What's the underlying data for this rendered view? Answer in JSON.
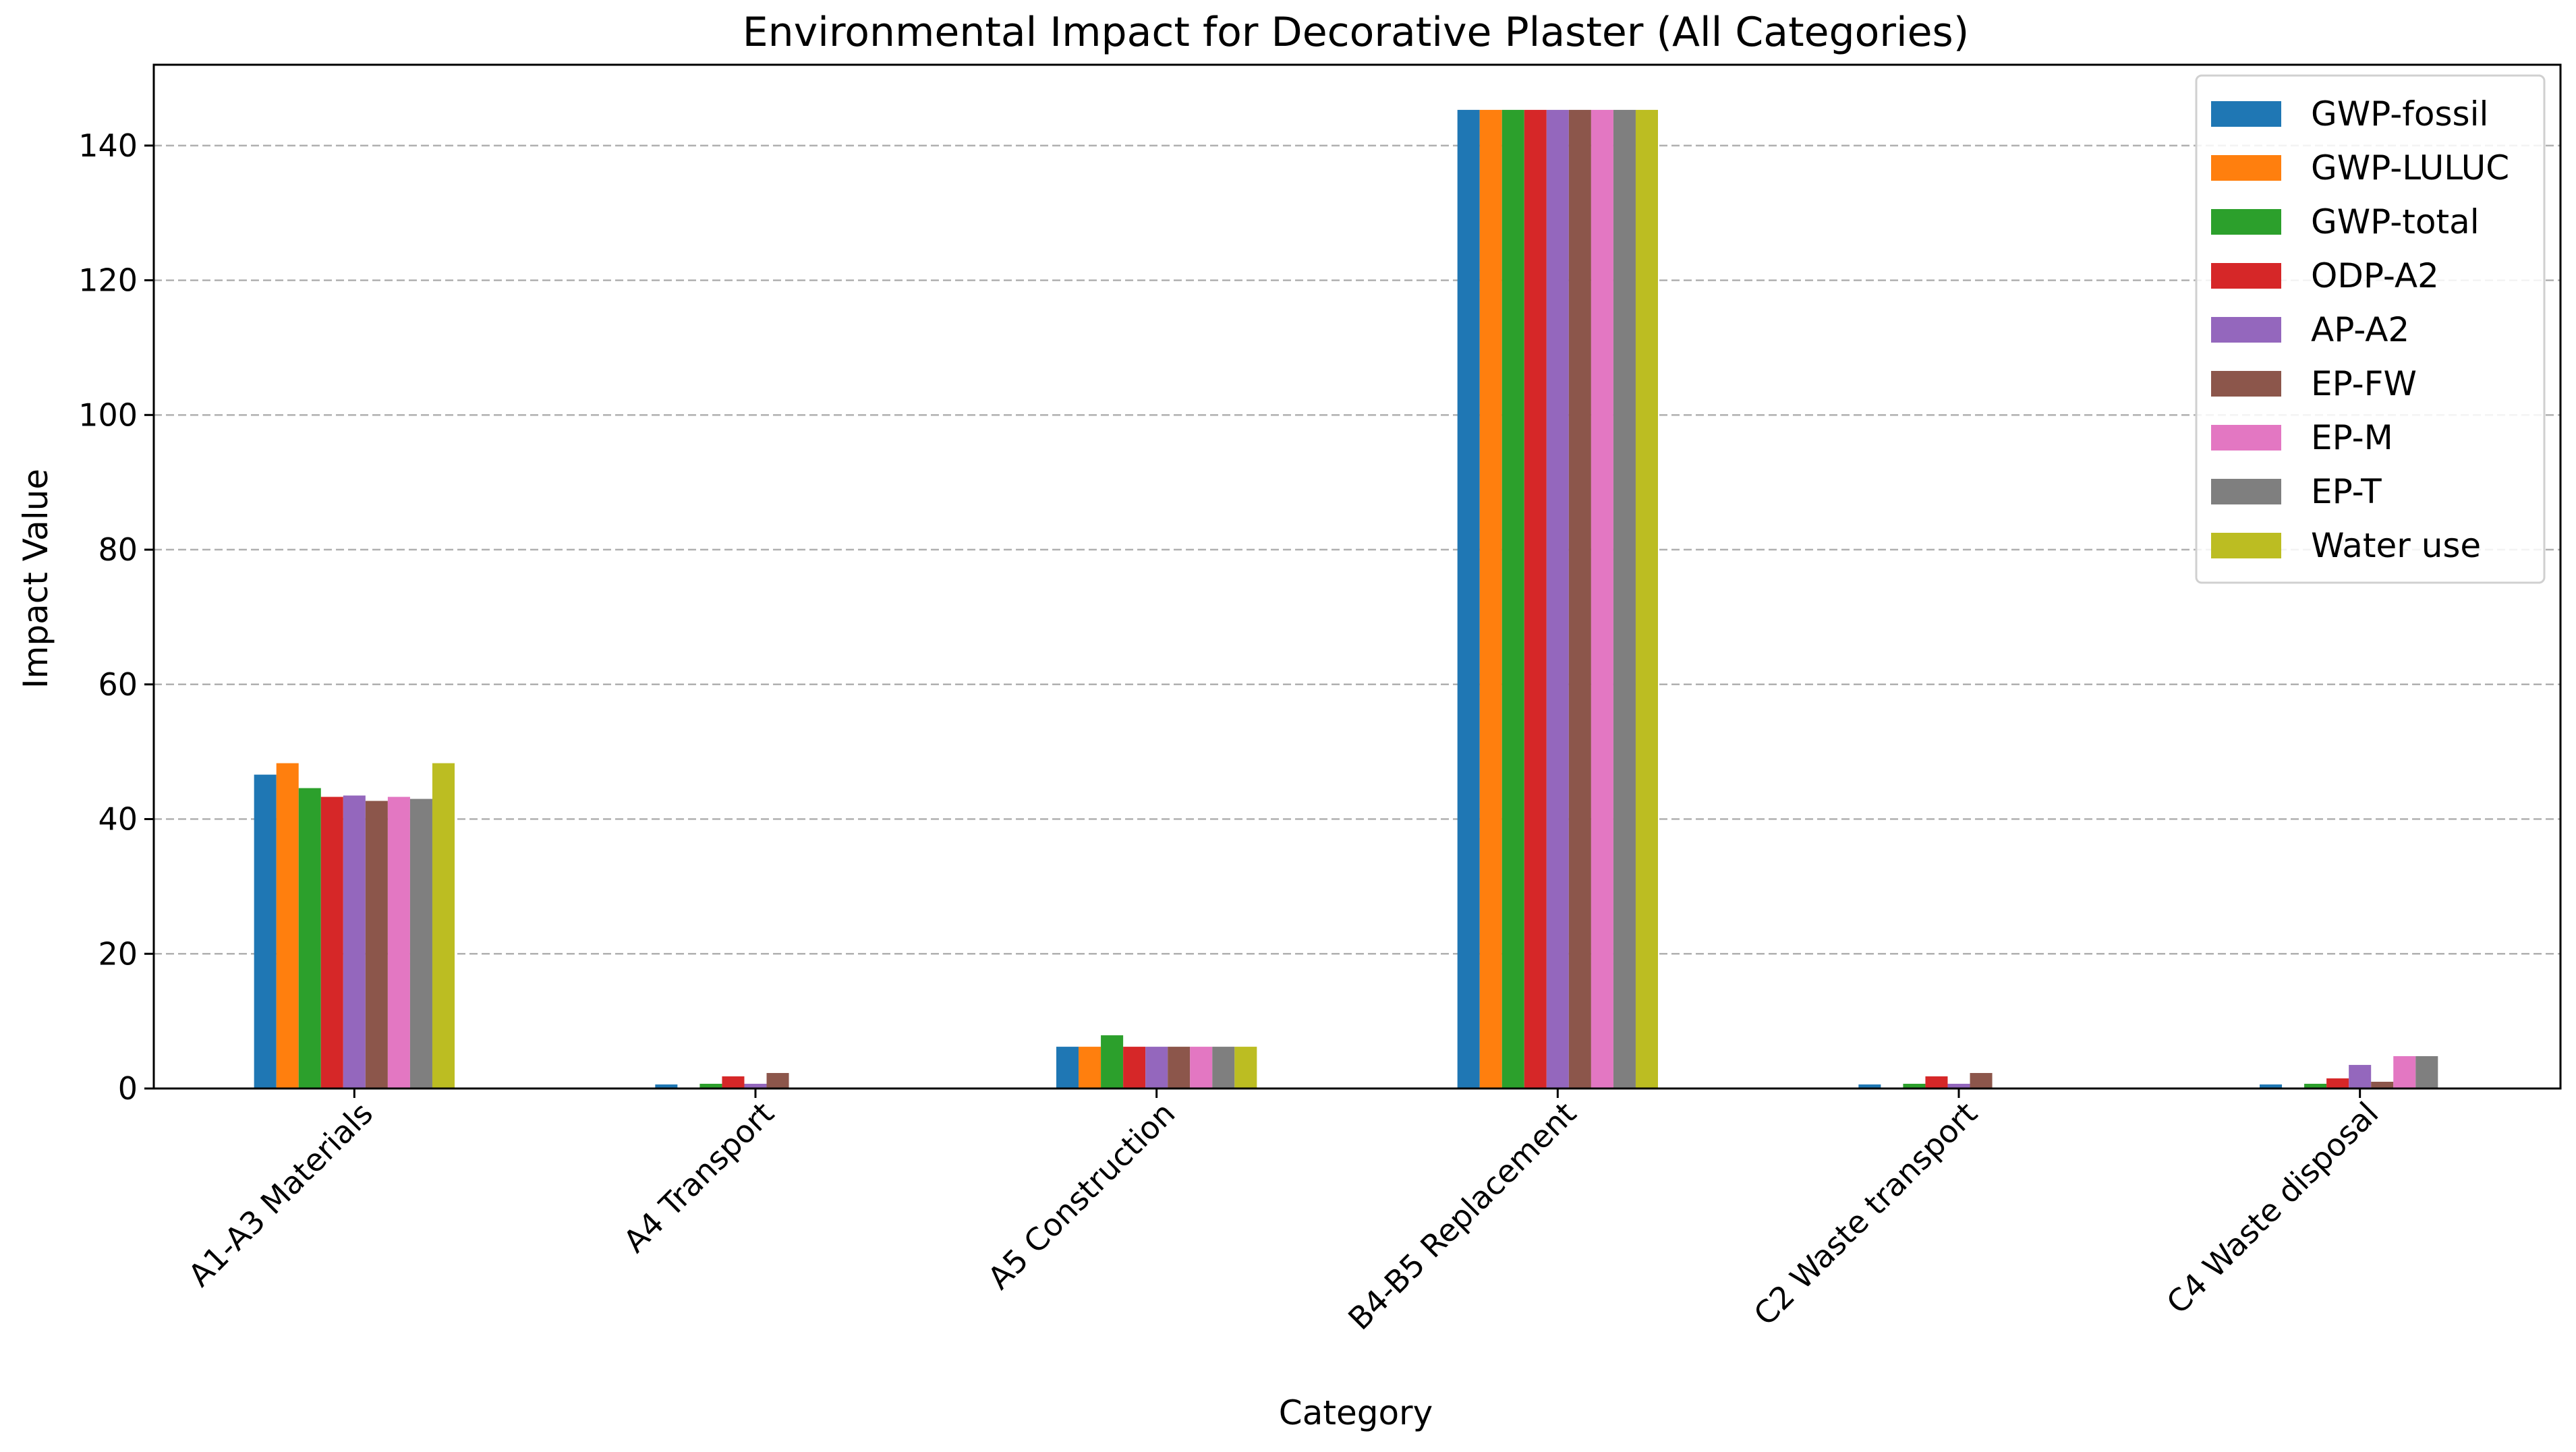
{
  "chart_data": {
    "type": "bar",
    "title": "Environmental Impact for Decorative Plaster (All Categories)",
    "xlabel": "Category",
    "ylabel": "Impact Value",
    "ylim": [
      0,
      152
    ],
    "yticks": [
      0,
      20,
      40,
      60,
      80,
      100,
      120,
      140
    ],
    "grid": "y-dashed",
    "legend_position": "top-right",
    "categories": [
      "A1-A3 Materials",
      "A4 Transport",
      "A5 Construction",
      "B4-B5 Replacement",
      "C2 Waste transport",
      "C4 Waste disposal"
    ],
    "series": [
      {
        "name": "GWP-fossil",
        "color": "#1f77b4",
        "values": [
          46.6,
          0.6,
          6.2,
          145.3,
          0.6,
          0.6
        ]
      },
      {
        "name": "GWP-LULUC",
        "color": "#ff7f0e",
        "values": [
          48.3,
          0.1,
          6.2,
          145.3,
          0.1,
          0.1
        ]
      },
      {
        "name": "GWP-total",
        "color": "#2ca02c",
        "values": [
          44.6,
          0.7,
          7.9,
          145.3,
          0.7,
          0.7
        ]
      },
      {
        "name": "ODP-A2",
        "color": "#d62728",
        "values": [
          43.3,
          1.8,
          6.2,
          145.3,
          1.8,
          1.5
        ]
      },
      {
        "name": "AP-A2",
        "color": "#9467bd",
        "values": [
          43.5,
          0.7,
          6.2,
          145.3,
          0.7,
          3.5
        ]
      },
      {
        "name": "EP-FW",
        "color": "#8c564b",
        "values": [
          42.7,
          2.3,
          6.2,
          145.3,
          2.3,
          1.0
        ]
      },
      {
        "name": "EP-M",
        "color": "#e377c2",
        "values": [
          43.3,
          0.1,
          6.2,
          145.3,
          0.1,
          4.8
        ]
      },
      {
        "name": "EP-T",
        "color": "#7f7f7f",
        "values": [
          43.0,
          0.1,
          6.2,
          145.3,
          0.1,
          4.8
        ]
      },
      {
        "name": "Water use",
        "color": "#bcbd22",
        "values": [
          48.3,
          0.1,
          6.2,
          145.3,
          0.1,
          0.1
        ]
      }
    ]
  }
}
